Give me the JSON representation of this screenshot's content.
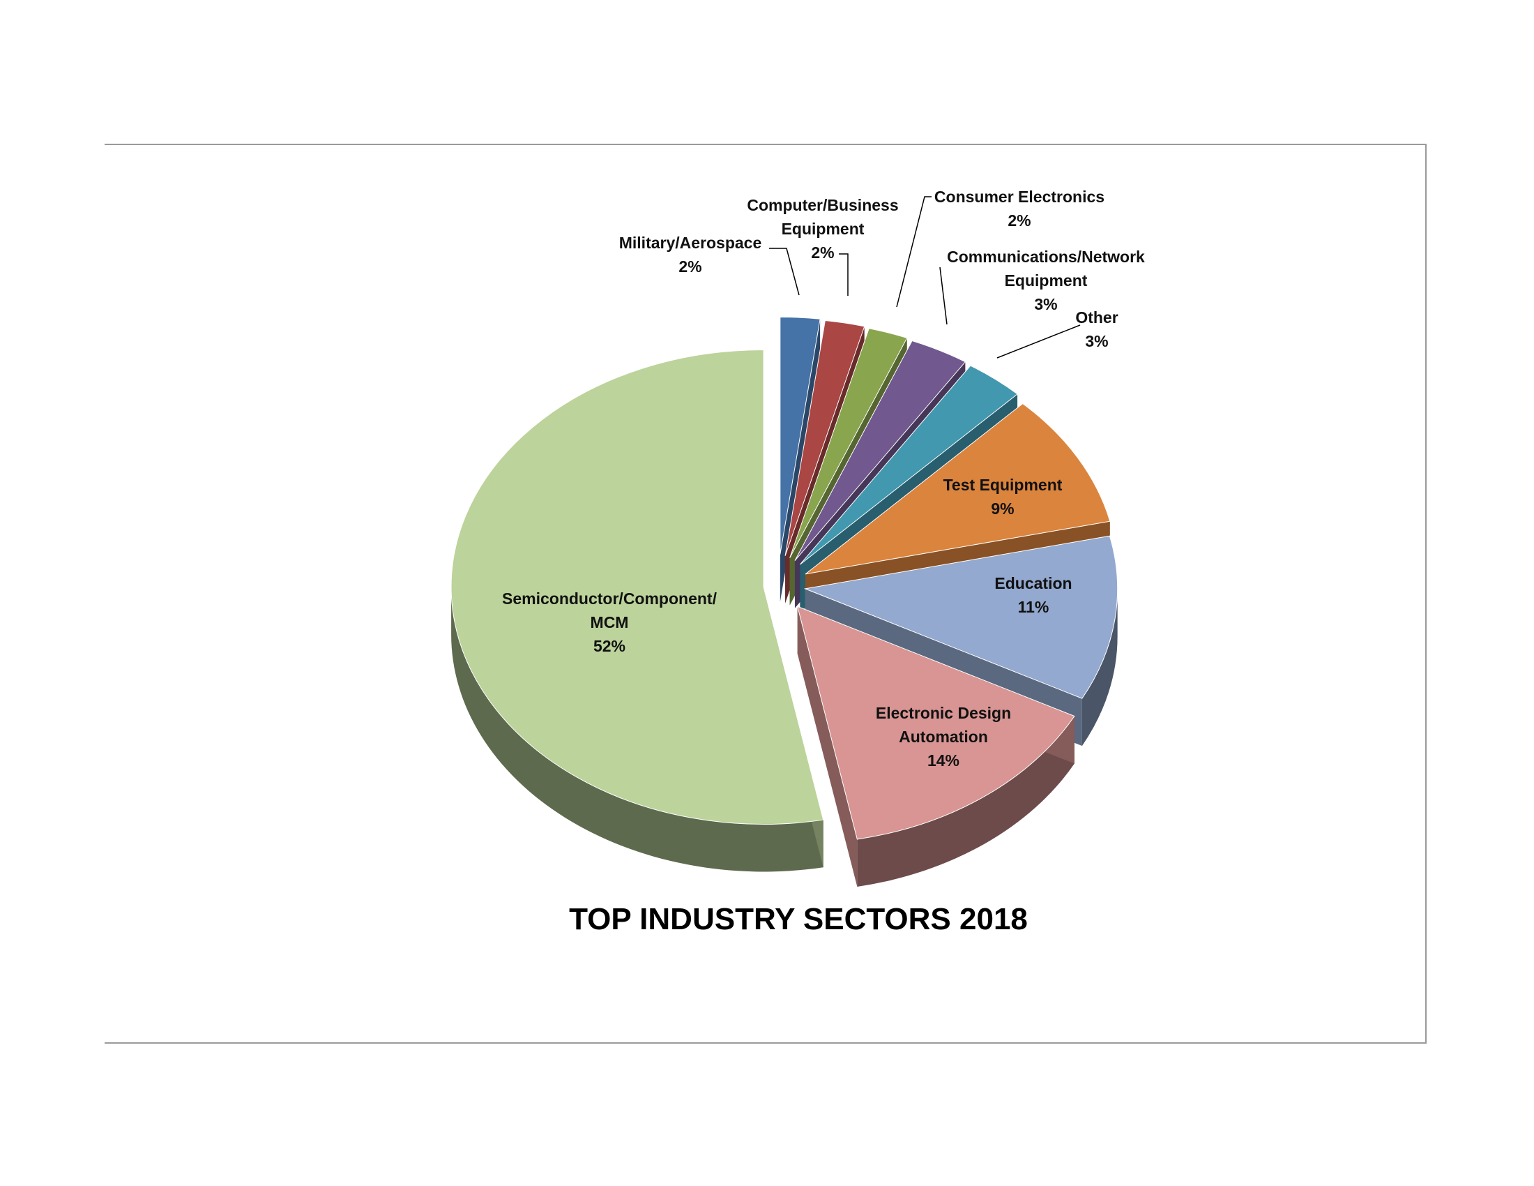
{
  "chart_data": {
    "type": "pie",
    "title": "TOP INDUSTRY SECTORS 2018",
    "slices": [
      {
        "label": "Military/Aerospace",
        "value": 2,
        "pct": "2%",
        "color": "#4572A7"
      },
      {
        "label": "Computer/Business Equipment",
        "value": 2,
        "pct": "2%",
        "color": "#AA4643"
      },
      {
        "label": "Consumer Electronics",
        "value": 2,
        "pct": "2%",
        "color": "#89A54E"
      },
      {
        "label": "Communications/Network Equipment",
        "value": 3,
        "pct": "3%",
        "color": "#71588F"
      },
      {
        "label": "Other",
        "value": 3,
        "pct": "3%",
        "color": "#4198AF"
      },
      {
        "label": "Test Equipment",
        "value": 9,
        "pct": "9%",
        "color": "#DB843D"
      },
      {
        "label": "Education",
        "value": 11,
        "pct": "11%",
        "color": "#93A9CF"
      },
      {
        "label": "Electronic Design Automation",
        "value": 14,
        "pct": "14%",
        "color": "#D89593"
      },
      {
        "label": "Semiconductor/Component/ MCM",
        "value": 52,
        "pct": "52%",
        "color": "#BCD39B"
      }
    ],
    "style": "3D exploded pie"
  }
}
